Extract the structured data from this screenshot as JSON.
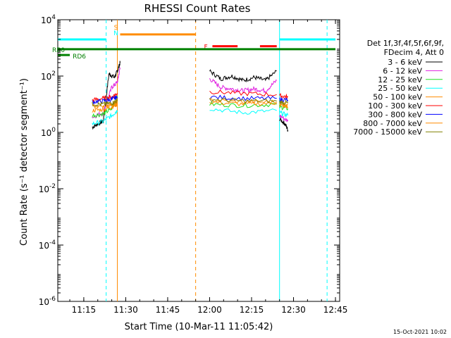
{
  "chart_data": {
    "type": "line",
    "title": "RHESSI Count Rates",
    "xlabel": "Start Time (10-Mar-11 11:05:42)",
    "ylabel": "Count Rate (s⁻¹ detector segment⁻¹)",
    "yscale": "log",
    "ylim": [
      1e-06,
      10000
    ],
    "xlim": [
      "11:05:42",
      "12:46:30"
    ],
    "x_ticks": [
      "11:15",
      "11:30",
      "11:45",
      "12:00",
      "12:15",
      "12:30",
      "12:45"
    ],
    "y_ticks": [
      "10^-6",
      "10^-4",
      "10^-2",
      "10^0",
      "10^2",
      "10^4"
    ],
    "legend_header": [
      "Det 1f,3f,4f,5f,6f,9f,",
      "FDecim 4, Att 0"
    ],
    "legend_placement": "right",
    "grid": false,
    "timestamp": "15-Oct-2021 10:02",
    "series": [
      {
        "name": "3 - 6 keV",
        "color": "#000000",
        "segments": [
          {
            "x": [
              "11:18",
              "11:20",
              "11:22",
              "11:24",
              "11:26",
              "11:27",
              "11:28"
            ],
            "y": [
              1.5,
              2.0,
              2.5,
              120,
              90,
              150,
              300
            ]
          },
          {
            "x": [
              "12:00",
              "12:04",
              "12:08",
              "12:12",
              "12:16",
              "12:20",
              "12:24"
            ],
            "y": [
              150,
              80,
              100,
              70,
              90,
              70,
              150
            ]
          },
          {
            "x": [
              "12:25",
              "12:27",
              "12:28"
            ],
            "y": [
              3.0,
              2.0,
              1.2
            ]
          }
        ]
      },
      {
        "name": "6 - 12 keV",
        "color": "#e020e0",
        "segments": [
          {
            "x": [
              "11:18",
              "11:22",
              "11:25",
              "11:27",
              "11:28"
            ],
            "y": [
              3.5,
              5.0,
              40,
              60,
              200
            ]
          },
          {
            "x": [
              "12:00",
              "12:04",
              "12:08",
              "12:12",
              "12:16",
              "12:20",
              "12:24"
            ],
            "y": [
              80,
              40,
              35,
              30,
              35,
              30,
              70
            ]
          },
          {
            "x": [
              "12:25",
              "12:28"
            ],
            "y": [
              4.0,
              2.5
            ]
          }
        ]
      },
      {
        "name": "12 - 25 keV",
        "color": "#20e020",
        "segments": [
          {
            "x": [
              "11:18",
              "11:22",
              "11:25",
              "11:27"
            ],
            "y": [
              4,
              4.5,
              7,
              20
            ]
          },
          {
            "x": [
              "12:00",
              "12:12",
              "12:24"
            ],
            "y": [
              10,
              9,
              10
            ]
          },
          {
            "x": [
              "12:25",
              "12:28"
            ],
            "y": [
              8,
              7
            ]
          }
        ]
      },
      {
        "name": "25 - 50 keV",
        "color": "#00ffff",
        "segments": [
          {
            "x": [
              "11:18",
              "11:22",
              "11:25",
              "11:27"
            ],
            "y": [
              2,
              2.5,
              4,
              6
            ]
          },
          {
            "x": [
              "12:00",
              "12:12",
              "12:24"
            ],
            "y": [
              7,
              5,
              6
            ]
          },
          {
            "x": [
              "12:25",
              "12:28"
            ],
            "y": [
              5,
              4
            ]
          }
        ]
      },
      {
        "name": "50 - 100 keV",
        "color": "#ff8c00",
        "segments": [
          {
            "x": [
              "11:18",
              "11:22",
              "11:25",
              "11:27"
            ],
            "y": [
              6,
              6.5,
              8,
              10
            ]
          },
          {
            "x": [
              "12:00",
              "12:12",
              "12:24"
            ],
            "y": [
              12,
              10,
              11
            ]
          },
          {
            "x": [
              "12:25",
              "12:28"
            ],
            "y": [
              9,
              8
            ]
          }
        ]
      },
      {
        "name": "100 - 300 keV",
        "color": "#ff0000",
        "segments": [
          {
            "x": [
              "11:18",
              "11:22",
              "11:25",
              "11:27"
            ],
            "y": [
              14,
              16,
              18,
              25
            ]
          },
          {
            "x": [
              "12:00",
              "12:12",
              "12:24"
            ],
            "y": [
              28,
              24,
              22
            ]
          },
          {
            "x": [
              "12:25",
              "12:28"
            ],
            "y": [
              20,
              18
            ]
          }
        ]
      },
      {
        "name": "300 - 800 keV",
        "color": "#0000ff",
        "segments": [
          {
            "x": [
              "11:18",
              "11:22",
              "11:25",
              "11:27"
            ],
            "y": [
              12,
              13,
              15,
              18
            ]
          },
          {
            "x": [
              "12:00",
              "12:12",
              "12:24"
            ],
            "y": [
              18,
              16,
              16
            ]
          },
          {
            "x": [
              "12:25",
              "12:28"
            ],
            "y": [
              15,
              14
            ]
          }
        ]
      },
      {
        "name": "800 - 7000 keV",
        "color": "#ff8c00",
        "segments": [
          {
            "x": [
              "11:18",
              "11:22",
              "11:25",
              "11:27"
            ],
            "y": [
              8,
              9,
              10,
              12
            ]
          },
          {
            "x": [
              "12:00",
              "12:12",
              "12:24"
            ],
            "y": [
              14,
              12,
              12
            ]
          },
          {
            "x": [
              "12:25",
              "12:28"
            ],
            "y": [
              11,
              10
            ]
          }
        ]
      },
      {
        "name": "7000 - 15000 keV",
        "color": "#808000",
        "segments": [
          {
            "x": [
              "11:18",
              "11:22",
              "11:25",
              "11:27"
            ],
            "y": [
              10,
              10,
              11,
              13
            ]
          },
          {
            "x": [
              "12:00",
              "12:12",
              "12:24"
            ],
            "y": [
              15,
              13,
              13
            ]
          },
          {
            "x": [
              "12:25",
              "12:28"
            ],
            "y": [
              12,
              11
            ]
          }
        ]
      }
    ],
    "flag_bars": [
      {
        "label": "",
        "color": "#00ffff",
        "y": 2000,
        "x_start": "11:05:42",
        "x_end": "11:23"
      },
      {
        "label": "",
        "color": "#00ffff",
        "y": 2000,
        "x_start": "12:25",
        "x_end": "12:45"
      },
      {
        "label": "",
        "color": "#ff8c00",
        "y": 3000,
        "x_start": "11:28",
        "x_end": "11:55"
      },
      {
        "label": "F",
        "color": "#ff0000",
        "y": 1150,
        "x_start": "12:01",
        "x_end": "12:10"
      },
      {
        "label": "",
        "color": "#ff0000",
        "y": 1150,
        "x_start": "12:18",
        "x_end": "12:24"
      },
      {
        "label": "RB0",
        "color": "#008000",
        "y": 900,
        "x_start": "11:05:42",
        "x_end": "12:45"
      },
      {
        "label": "RD6",
        "color": "#008000",
        "y": 560,
        "x_start": "11:05:42",
        "x_end": "11:10"
      }
    ],
    "markers": [
      {
        "label": "S",
        "color": "#ff8c00",
        "x": "11:27"
      },
      {
        "label": "N",
        "color": "#00ffff",
        "x": "11:27"
      }
    ],
    "vertical_lines": [
      {
        "x": "11:23",
        "color": "#00ffff",
        "style": "dashed"
      },
      {
        "x": "11:27",
        "color": "#ff8c00",
        "style": "solid"
      },
      {
        "x": "11:55",
        "color": "#ff8c00",
        "style": "dashed"
      },
      {
        "x": "12:25",
        "color": "#00ffff",
        "style": "solid"
      },
      {
        "x": "12:42",
        "color": "#00ffff",
        "style": "dashed"
      }
    ]
  }
}
